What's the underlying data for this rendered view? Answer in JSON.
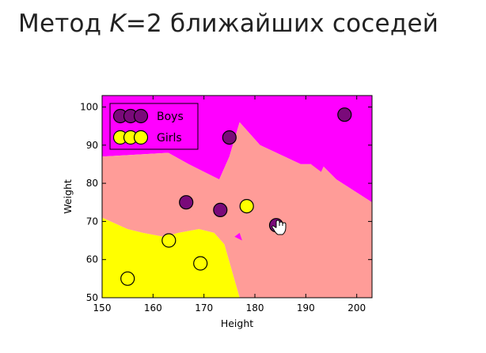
{
  "slide": {
    "title_prefix": "Метод ",
    "title_k": "K",
    "title_suffix": "=2 ближайших соседей"
  },
  "colors": {
    "region_boys": "#ff00ff",
    "region_mixed": "#ff9c98",
    "region_girls": "#ffff00",
    "boys_marker": "#7a0a7a",
    "girls_marker": "#ffff00"
  },
  "chart_data": {
    "type": "scatter",
    "title": "",
    "xlabel": "Height",
    "ylabel": "Weight",
    "xlim": [
      150,
      203
    ],
    "ylim": [
      50,
      103
    ],
    "xticks": [
      150,
      160,
      170,
      180,
      190,
      200
    ],
    "yticks": [
      50,
      60,
      70,
      80,
      90,
      100
    ],
    "legend_position": "top-left",
    "series": [
      {
        "name": "Boys",
        "color": "#7a0a7a",
        "x": [
          166.5,
          173.2,
          175.0,
          184.2,
          197.6
        ],
        "y": [
          75,
          73,
          92,
          69,
          98
        ]
      },
      {
        "name": "Girls",
        "color": "#ffff00",
        "x": [
          155.0,
          163.1,
          169.3,
          178.4
        ],
        "y": [
          55,
          65,
          59,
          74
        ]
      }
    ],
    "decision_regions": {
      "boys": [
        [
          150,
          103
        ],
        [
          203,
          103
        ],
        [
          203,
          75
        ],
        [
          196,
          81
        ],
        [
          193,
          85
        ],
        [
          189,
          85
        ],
        [
          181,
          90
        ],
        [
          177,
          96
        ],
        [
          175,
          87
        ],
        [
          173,
          81
        ],
        [
          167,
          85
        ],
        [
          163,
          88
        ],
        [
          150,
          87
        ]
      ],
      "mixed": [
        [
          150,
          87
        ],
        [
          163,
          88
        ],
        [
          167,
          85
        ],
        [
          173,
          81
        ],
        [
          175,
          87
        ],
        [
          177,
          96
        ],
        [
          181,
          90
        ],
        [
          189,
          85
        ],
        [
          193,
          85
        ],
        [
          196,
          81
        ],
        [
          203,
          75
        ],
        [
          203,
          50
        ],
        [
          177,
          50
        ],
        [
          174,
          64
        ],
        [
          172,
          67
        ],
        [
          169,
          68
        ],
        [
          165,
          67
        ],
        [
          162,
          66
        ],
        [
          158,
          67
        ],
        [
          155,
          68
        ],
        [
          150,
          71
        ]
      ],
      "girls": [
        [
          150,
          71
        ],
        [
          155,
          68
        ],
        [
          158,
          67
        ],
        [
          162,
          66
        ],
        [
          165,
          67
        ],
        [
          169,
          68
        ],
        [
          172,
          67
        ],
        [
          174,
          64
        ],
        [
          177,
          50
        ],
        [
          150,
          50
        ]
      ],
      "boys_islands": [
        [
          [
            191,
            85
          ],
          [
            194,
            86
          ],
          [
            193,
            83
          ]
        ],
        [
          [
            176,
            66
          ],
          [
            177.5,
            65
          ],
          [
            177,
            67
          ]
        ]
      ]
    }
  }
}
